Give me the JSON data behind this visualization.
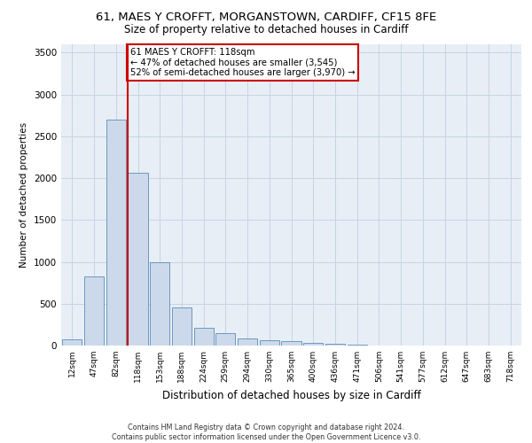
{
  "title_line1": "61, MAES Y CROFFT, MORGANSTOWN, CARDIFF, CF15 8FE",
  "title_line2": "Size of property relative to detached houses in Cardiff",
  "xlabel": "Distribution of detached houses by size in Cardiff",
  "ylabel": "Number of detached properties",
  "bar_color": "#ccd9ea",
  "bar_edge_color": "#5b8db8",
  "grid_color": "#c8d4e4",
  "bg_color": "#e8eef6",
  "categories": [
    "12sqm",
    "47sqm",
    "82sqm",
    "118sqm",
    "153sqm",
    "188sqm",
    "224sqm",
    "259sqm",
    "294sqm",
    "330sqm",
    "365sqm",
    "400sqm",
    "436sqm",
    "471sqm",
    "506sqm",
    "541sqm",
    "577sqm",
    "612sqm",
    "647sqm",
    "683sqm",
    "718sqm"
  ],
  "values": [
    75,
    830,
    2700,
    2060,
    1000,
    455,
    215,
    145,
    80,
    60,
    50,
    35,
    20,
    10,
    5,
    5,
    3,
    3,
    2,
    2,
    2
  ],
  "ylim": [
    0,
    3600
  ],
  "yticks": [
    0,
    500,
    1000,
    1500,
    2000,
    2500,
    3000,
    3500
  ],
  "vline_color": "#cc0000",
  "annotation_text": "61 MAES Y CROFFT: 118sqm\n← 47% of detached houses are smaller (3,545)\n52% of semi-detached houses are larger (3,970) →",
  "annotation_box_color": "#ffffff",
  "annotation_box_edge": "#cc0000",
  "footer1": "Contains HM Land Registry data © Crown copyright and database right 2024.",
  "footer2": "Contains public sector information licensed under the Open Government Licence v3.0."
}
